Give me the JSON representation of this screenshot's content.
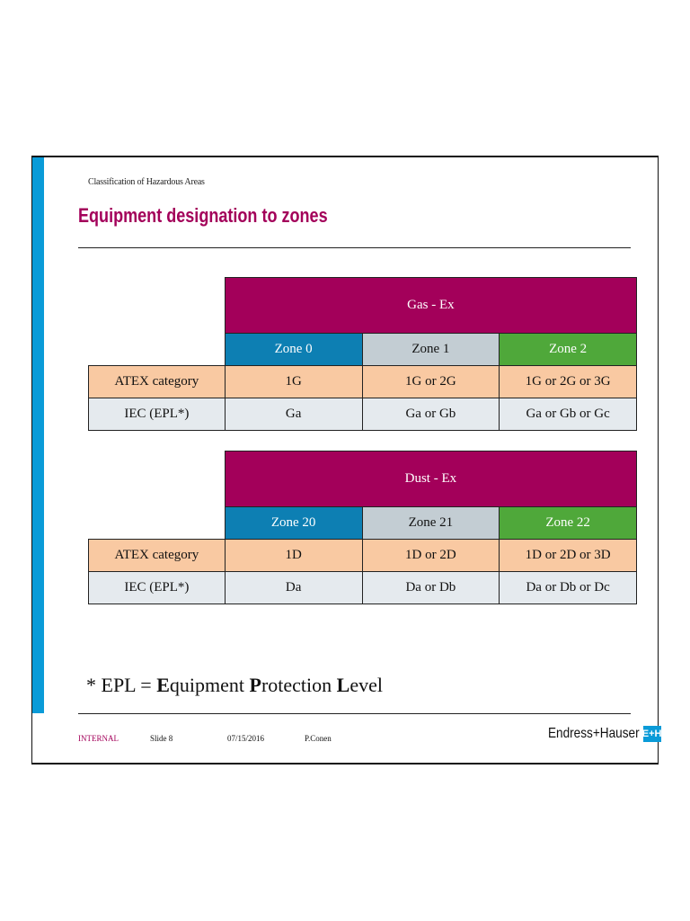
{
  "breadcrumb": "Classification of Hazardous Areas",
  "title": "Equipment designation to zones",
  "gas_table": {
    "header": "Gas - Ex",
    "zones": [
      "Zone 0",
      "Zone 1",
      "Zone 2"
    ],
    "rows": [
      {
        "label": "ATEX category",
        "values": [
          "1G",
          "1G or 2G",
          "1G or 2G or 3G"
        ]
      },
      {
        "label": "IEC (EPL*)",
        "values": [
          "Ga",
          "Ga or Gb",
          "Ga or Gb or Gc"
        ]
      }
    ]
  },
  "dust_table": {
    "header": "Dust - Ex",
    "zones": [
      "Zone 20",
      "Zone 21",
      "Zone 22"
    ],
    "rows": [
      {
        "label": "ATEX category",
        "values": [
          "1D",
          "1D or 2D",
          "1D or 2D or 3D"
        ]
      },
      {
        "label": "IEC (EPL*)",
        "values": [
          "Da",
          "Da or Db",
          "Da or Db or Dc"
        ]
      }
    ]
  },
  "footnote": {
    "prefix": "* EPL = ",
    "e_initial": "E",
    "e_rest": "quipment ",
    "p_initial": "P",
    "p_rest": "rotection ",
    "l_initial": "L",
    "l_rest": "evel"
  },
  "footer": {
    "classification": "INTERNAL",
    "slide": "Slide 8",
    "date": "07/15/2016",
    "author": "P.Conen",
    "logo_text": "Endress+Hauser",
    "logo_mark": "E+H"
  },
  "colors": {
    "accent_blue": "#0a9bd8",
    "title_magenta": "#a3005a",
    "zone0_blue": "#0d7fb3",
    "zone1_grey": "#c3cdd3",
    "zone2_green": "#4fa83a",
    "atex_peach": "#f9c9a2",
    "iec_grey": "#e5eaee"
  }
}
